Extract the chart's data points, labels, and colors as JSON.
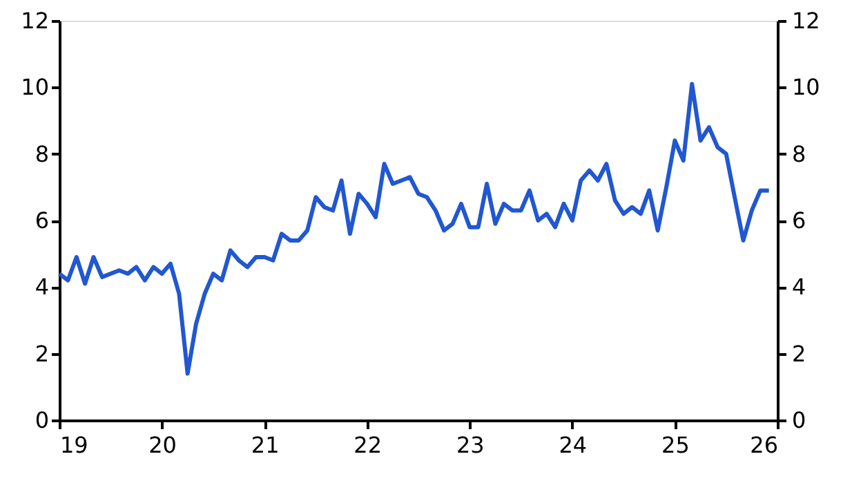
{
  "chart_data": {
    "type": "line",
    "xlim": [
      19,
      26
    ],
    "xticks": [
      19,
      20,
      21,
      22,
      23,
      24,
      25,
      26
    ],
    "ylim": [
      0,
      12
    ],
    "yticks": [
      0,
      2,
      4,
      6,
      8,
      10,
      12
    ],
    "y2lim": [
      0,
      12
    ],
    "y2ticks": [
      0,
      2,
      4,
      6,
      8,
      10,
      12
    ],
    "grid": false,
    "marker": "none",
    "line_style": "solid",
    "x": [
      19.0,
      19.083,
      19.167,
      19.25,
      19.333,
      19.417,
      19.5,
      19.583,
      19.667,
      19.75,
      19.833,
      19.917,
      20.0,
      20.083,
      20.167,
      20.25,
      20.333,
      20.417,
      20.5,
      20.583,
      20.667,
      20.75,
      20.833,
      20.917,
      21.0,
      21.083,
      21.167,
      21.25,
      21.333,
      21.417,
      21.5,
      21.583,
      21.667,
      21.75,
      21.833,
      21.917,
      22.0,
      22.083,
      22.167,
      22.25,
      22.333,
      22.417,
      22.5,
      22.583,
      22.667,
      22.75,
      22.833,
      22.917,
      23.0,
      23.083,
      23.167,
      23.25,
      23.333,
      23.417,
      23.5,
      23.583,
      23.667,
      23.75,
      23.833,
      23.917,
      24.0,
      24.083,
      24.167,
      24.25,
      24.333,
      24.417,
      24.5,
      24.583,
      24.667,
      24.75,
      24.833,
      24.917,
      25.0,
      25.083,
      25.167,
      25.25,
      25.333,
      25.417,
      25.5,
      25.583,
      25.667,
      25.75,
      25.833,
      25.917
    ],
    "series": [
      {
        "color": "#2157d0",
        "values": [
          4.4,
          4.2,
          4.9,
          4.1,
          4.9,
          4.3,
          4.4,
          4.5,
          4.4,
          4.6,
          4.2,
          4.6,
          4.4,
          4.7,
          3.8,
          1.4,
          2.9,
          3.8,
          4.4,
          4.2,
          5.1,
          4.8,
          4.6,
          4.9,
          4.9,
          4.8,
          5.6,
          5.4,
          5.4,
          5.7,
          6.7,
          6.4,
          6.3,
          7.2,
          5.6,
          6.8,
          6.5,
          6.1,
          7.7,
          7.1,
          7.2,
          7.3,
          6.8,
          6.7,
          6.3,
          5.7,
          5.9,
          6.5,
          5.8,
          5.8,
          7.1,
          5.9,
          6.5,
          6.3,
          6.3,
          6.9,
          6.0,
          6.2,
          5.8,
          6.5,
          6.0,
          7.2,
          7.5,
          7.2,
          7.7,
          6.6,
          6.2,
          6.4,
          6.2,
          6.9,
          5.7,
          7.0,
          8.4,
          7.8,
          10.1,
          8.4,
          8.8,
          8.2,
          8.0,
          6.7,
          5.4,
          6.3,
          6.9,
          6.9
        ]
      }
    ]
  }
}
